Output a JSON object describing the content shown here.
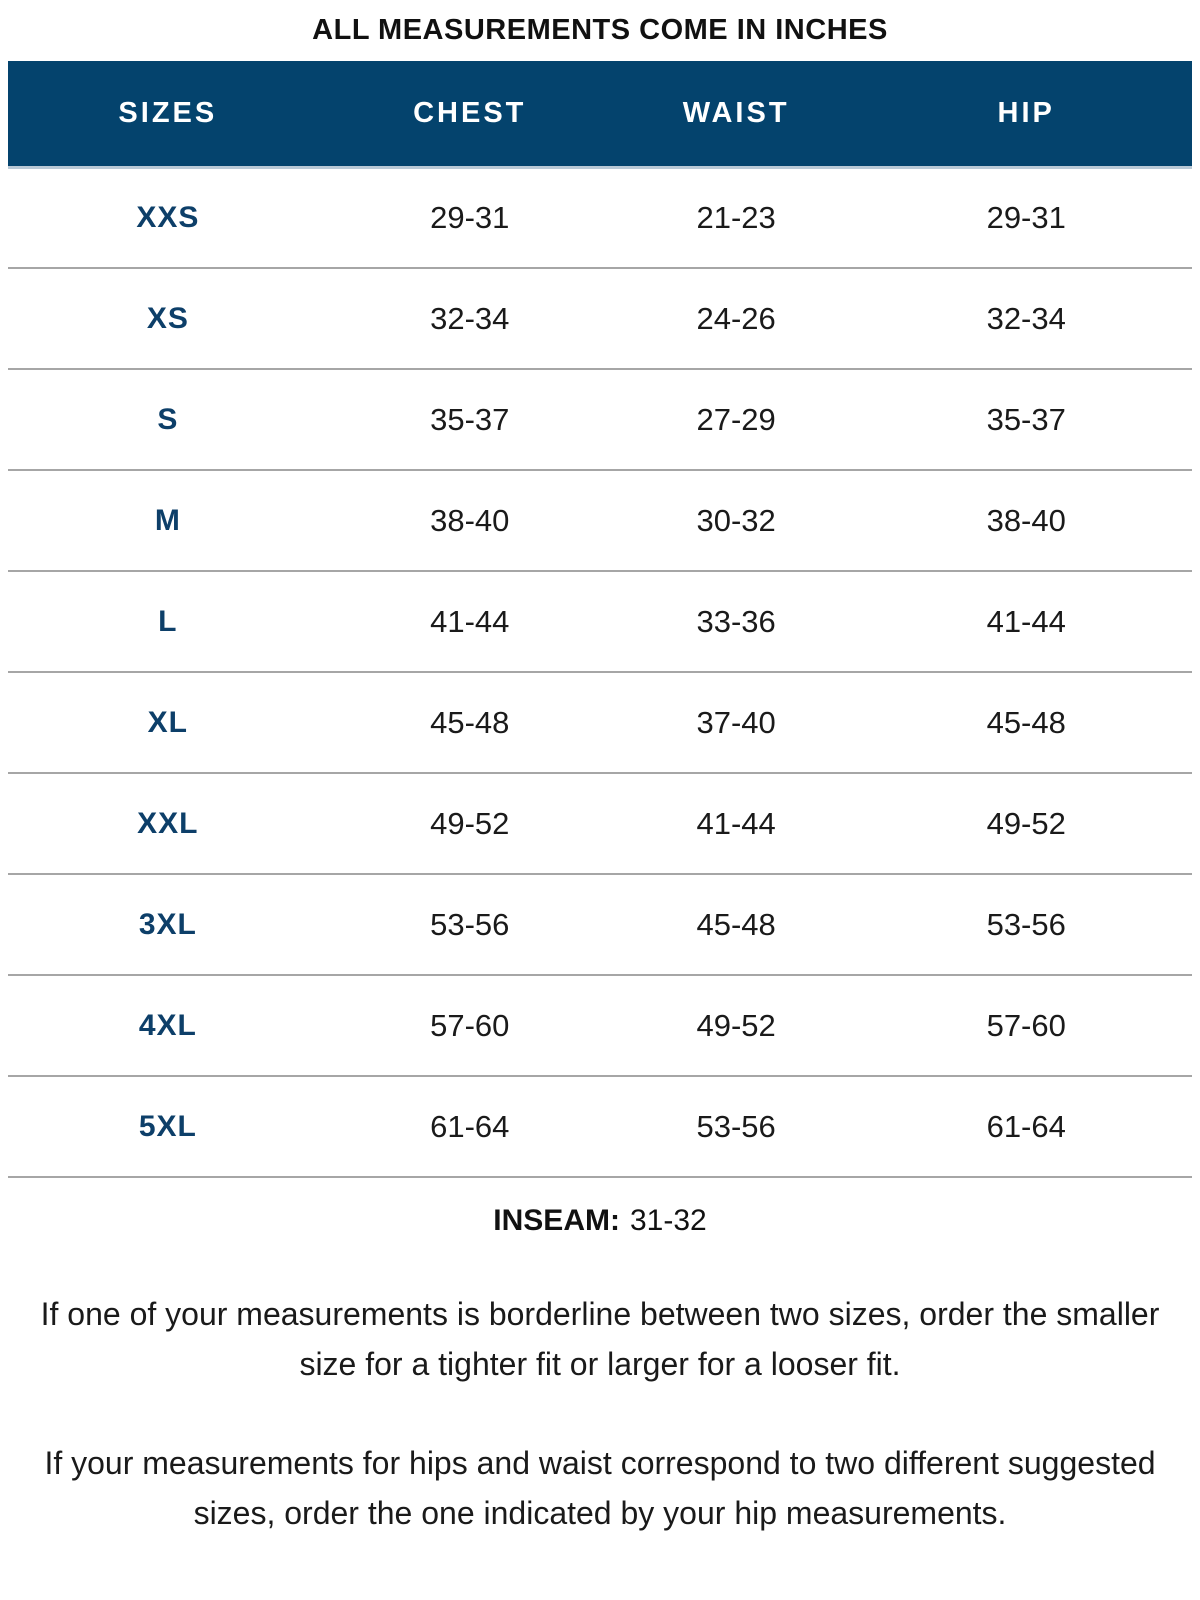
{
  "title": "ALL MEASUREMENTS COME IN INCHES",
  "colors": {
    "header_bg": "#04436d",
    "header_text": "#ffffff",
    "size_label_text": "#0d3f69",
    "value_text": "#1a1a1a",
    "row_separator": "#a6a6a6"
  },
  "chart_data": {
    "type": "table",
    "title": "ALL MEASUREMENTS COME IN INCHES",
    "columns": [
      "SIZES",
      "CHEST",
      "WAIST",
      "HIP"
    ],
    "rows": [
      [
        "XXS",
        "29-31",
        "21-23",
        "29-31"
      ],
      [
        "XS",
        "32-34",
        "24-26",
        "32-34"
      ],
      [
        "S",
        "35-37",
        "27-29",
        "35-37"
      ],
      [
        "M",
        "38-40",
        "30-32",
        "38-40"
      ],
      [
        "L",
        "41-44",
        "33-36",
        "41-44"
      ],
      [
        "XL",
        "45-48",
        "37-40",
        "45-48"
      ],
      [
        "XXL",
        "49-52",
        "41-44",
        "49-52"
      ],
      [
        "3XL",
        "53-56",
        "45-48",
        "53-56"
      ],
      [
        "4XL",
        "57-60",
        "49-52",
        "57-60"
      ],
      [
        "5XL",
        "61-64",
        "53-56",
        "61-64"
      ]
    ]
  },
  "inseam": {
    "label": "INSEAM:",
    "value": "31-32"
  },
  "notes": [
    "If one of your measurements is borderline between two sizes, order the smaller size for a tighter fit or larger for a looser fit.",
    "If your measurements for hips and waist correspond to two different suggested sizes, order the one indicated by your hip measurements."
  ]
}
